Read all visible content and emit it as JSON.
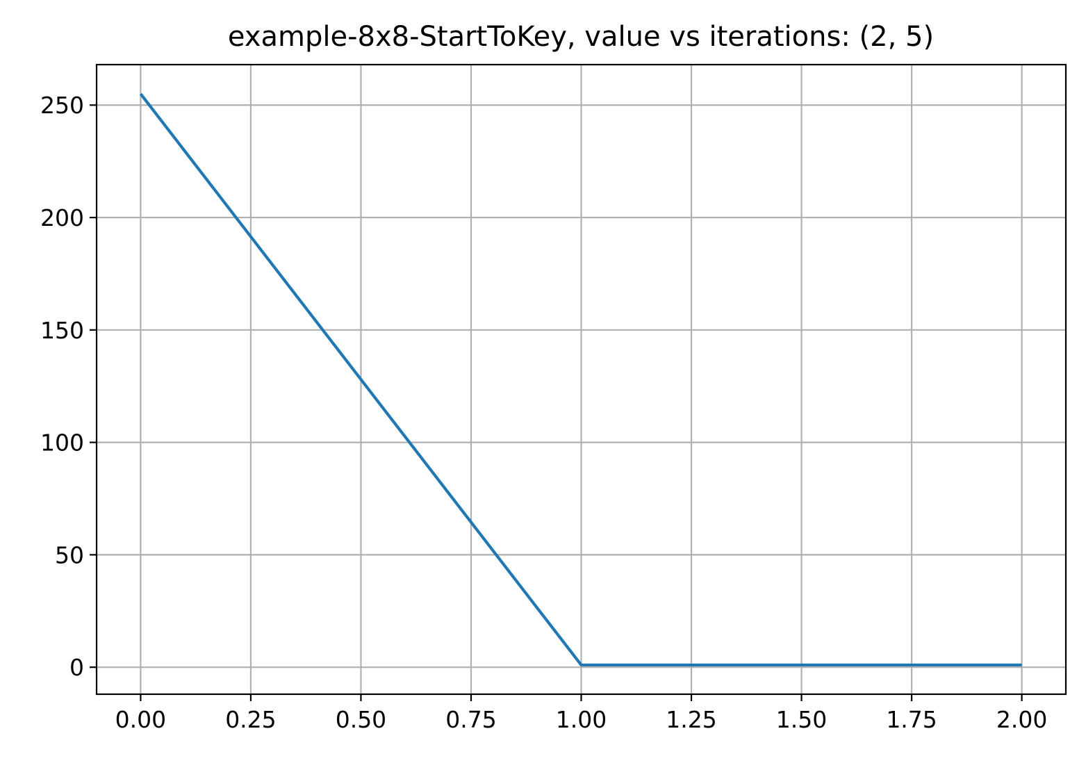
{
  "chart_data": {
    "type": "line",
    "title": "example-8x8-StartToKey, value vs iterations: (2, 5)",
    "xlabel": "",
    "ylabel": "",
    "xlim": [
      -0.1,
      2.1
    ],
    "ylim": [
      -12,
      268
    ],
    "grid": true,
    "x_ticks": [
      {
        "value": 0.0,
        "label": "0.00"
      },
      {
        "value": 0.25,
        "label": "0.25"
      },
      {
        "value": 0.5,
        "label": "0.50"
      },
      {
        "value": 0.75,
        "label": "0.75"
      },
      {
        "value": 1.0,
        "label": "1.00"
      },
      {
        "value": 1.25,
        "label": "1.25"
      },
      {
        "value": 1.5,
        "label": "1.50"
      },
      {
        "value": 1.75,
        "label": "1.75"
      },
      {
        "value": 2.0,
        "label": "2.00"
      }
    ],
    "y_ticks": [
      {
        "value": 0,
        "label": "0"
      },
      {
        "value": 50,
        "label": "50"
      },
      {
        "value": 100,
        "label": "100"
      },
      {
        "value": 150,
        "label": "150"
      },
      {
        "value": 200,
        "label": "200"
      },
      {
        "value": 250,
        "label": "250"
      }
    ],
    "series": [
      {
        "x": [
          0,
          1,
          2
        ],
        "y": [
          255,
          1,
          1
        ],
        "color": "#1f77b4"
      }
    ]
  }
}
